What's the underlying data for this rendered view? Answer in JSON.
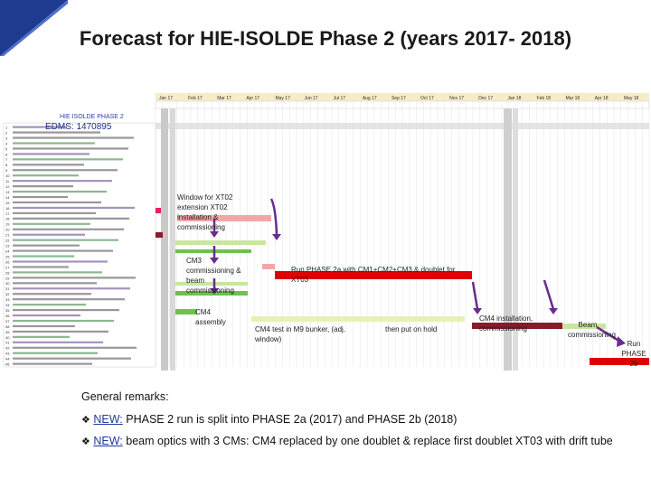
{
  "slide": {
    "title": "Forecast for HIE-ISOLDE Phase 2 (years 2017- 2018)"
  },
  "gantt": {
    "header_label": "HIE ISOLDE PHASE 2",
    "edms_label": "EDMS: 1470895",
    "months": [
      "Jan 17",
      "Feb 17",
      "Mar 17",
      "Apr 17",
      "May 17",
      "Jun 17",
      "Jul 17",
      "Aug 17",
      "Sep 17",
      "Oct 17",
      "Nov 17",
      "Dec 17",
      "Jan 18",
      "Feb 18",
      "Mar 18",
      "Apr 18",
      "May 18"
    ],
    "row_numbers": [
      "1",
      "2",
      "3",
      "4",
      "5",
      "6",
      "7",
      "8",
      "9",
      "10",
      "11",
      "12",
      "13",
      "14",
      "15",
      "16",
      "17",
      "18",
      "19",
      "20",
      "21",
      "22",
      "23",
      "24",
      "25",
      "26",
      "27",
      "28",
      "29",
      "30",
      "31",
      "32",
      "33",
      "34",
      "35",
      "36",
      "37",
      "38",
      "39",
      "40",
      "41",
      "42",
      "43",
      "44",
      "45"
    ]
  },
  "annotations": {
    "xt02": "Window for XT02 extension XT02 installation & commissioning",
    "cm3": "CM3 commissioning & beam commissioning",
    "cm4_assembly": "CM4 assembly",
    "run2a": "Run PHASE 2a with CM1+CM2+CM3 & doublet for XT03",
    "cm4_test": "CM4 test in M9 bunker, (adj. window)",
    "hold": "then put on hold",
    "cm4_install": "CM4 installation, commissioning",
    "beam_comm": "Beam commissioning",
    "run2b": "Run PHASE 2b"
  },
  "remarks": {
    "heading": "General remarks:",
    "items": [
      {
        "new": "NEW:",
        "text": " PHASE 2 run is split into PHASE 2a (2017) and PHASE 2b (2018)"
      },
      {
        "new": "NEW:",
        "text": " beam optics with 3 CMs: CM4 replaced by one doublet & replace first doublet XT03 with drift tube"
      }
    ]
  },
  "colors": {
    "corner": "#1f3b8f",
    "run_bar": "#e00000",
    "install": "#8b1a2b",
    "green": "#6cc24a",
    "light_green": "#c8e6a0",
    "pink": "#f4a6a6",
    "arrow": "#6a2c8c",
    "grey_col": "#bdbdbd"
  }
}
